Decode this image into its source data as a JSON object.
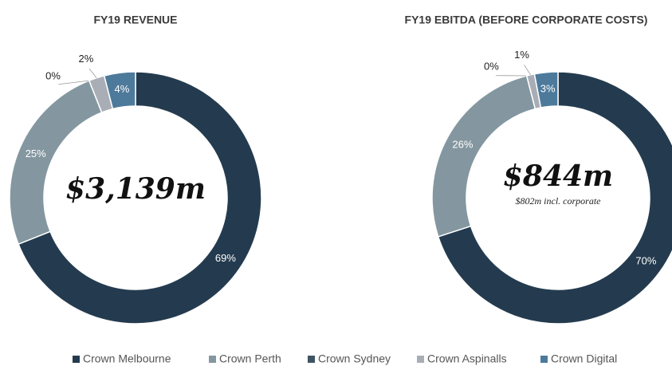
{
  "chart_data": [
    {
      "type": "donut",
      "title": "FY19 REVENUE",
      "center_text": "$3,139m",
      "categories": [
        "Crown Melbourne",
        "Crown Perth",
        "Crown Sydney",
        "Crown Aspinalls",
        "Crown Digital"
      ],
      "values": [
        69,
        25,
        0,
        2,
        4
      ],
      "value_labels": [
        "69%",
        "25%",
        "0%",
        "2%",
        "4%"
      ],
      "colors": [
        "#243b4f",
        "#8497a0",
        "#3e5463",
        "#a9adb5",
        "#4d7a9b"
      ]
    },
    {
      "type": "donut",
      "title": "FY19 EBITDA (BEFORE CORPORATE COSTS)",
      "center_text": "$844m",
      "center_subtext": "$802m incl. corporate",
      "categories": [
        "Crown Melbourne",
        "Crown Perth",
        "Crown Sydney",
        "Crown Aspinalls",
        "Crown Digital"
      ],
      "values": [
        70,
        26,
        0,
        1,
        3
      ],
      "value_labels": [
        "70%",
        "26%",
        "0%",
        "1%",
        "3%"
      ],
      "colors": [
        "#243b4f",
        "#8497a0",
        "#3e5463",
        "#a9adb5",
        "#4d7a9b"
      ]
    }
  ]
}
